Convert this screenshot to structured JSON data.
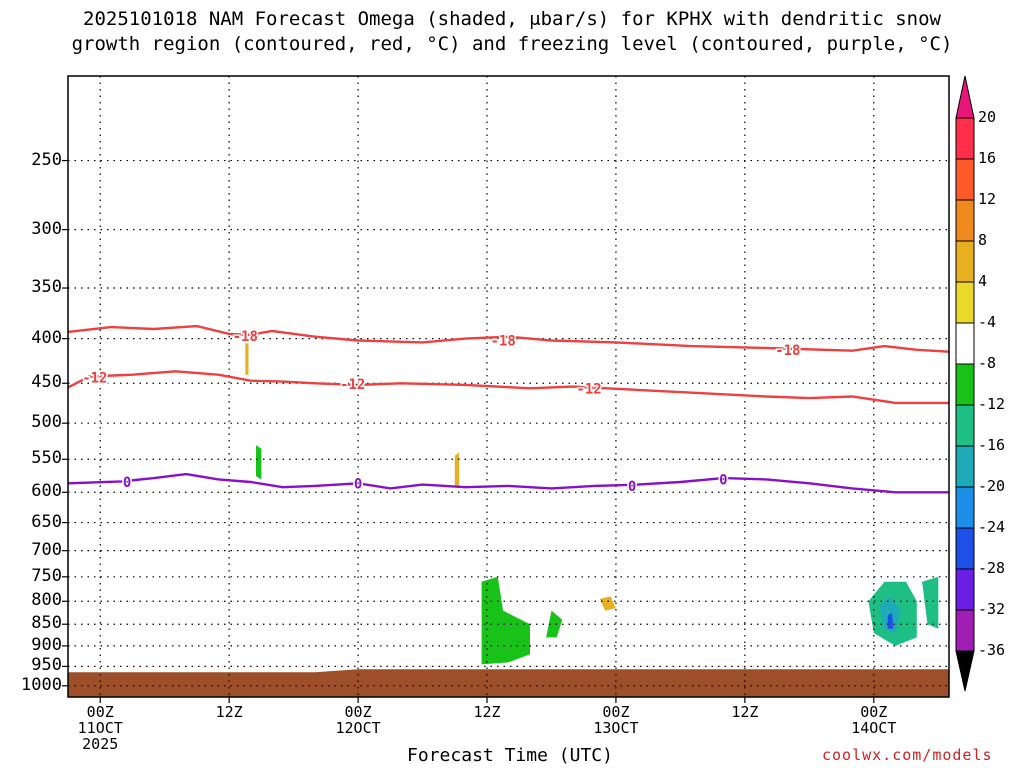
{
  "title_line1": "2025101018 NAM Forecast Omega (shaded, μbar/s) for KPHX with dendritic snow",
  "title_line2": "growth region (contoured, red, °C) and freezing level (contoured, purple, °C)",
  "credit": "coolwx.com/models",
  "chart_data": {
    "type": "heatmap",
    "xlabel": "Forecast Time (UTC)",
    "ylabel": "",
    "x_ticks": [
      {
        "hours": 0,
        "lines": [
          "00Z",
          "11OCT",
          "2025"
        ]
      },
      {
        "hours": 12,
        "lines": [
          "12Z"
        ]
      },
      {
        "hours": 24,
        "lines": [
          "00Z",
          "12OCT"
        ]
      },
      {
        "hours": 36,
        "lines": [
          "12Z"
        ]
      },
      {
        "hours": 48,
        "lines": [
          "00Z",
          "13OCT"
        ]
      },
      {
        "hours": 60,
        "lines": [
          "12Z"
        ]
      },
      {
        "hours": 72,
        "lines": [
          "00Z",
          "14OCT"
        ]
      }
    ],
    "xlim_hours": [
      -3,
      79
    ],
    "y_ticks": [
      250,
      300,
      350,
      400,
      450,
      500,
      550,
      600,
      650,
      700,
      750,
      800,
      850,
      900,
      950,
      1000
    ],
    "ylim_hpa": [
      200,
      1030
    ],
    "y_scale": "log-pressure",
    "grid": true,
    "colorbar": {
      "ticks": [
        20,
        16,
        12,
        8,
        4,
        -4,
        -8,
        -12,
        -16,
        -20,
        -24,
        -28,
        -32,
        -36
      ],
      "colors": [
        "#ff2f4b",
        "#ff5a2a",
        "#f08a1e",
        "#e8b020",
        "#ead82a",
        "#ffffff",
        "#19c219",
        "#1ebf85",
        "#1eaab7",
        "#1e8fe8",
        "#1e4fe6",
        "#6a1ee6",
        "#a01eb4",
        "#a8a8a8"
      ],
      "top_arrow_color": "#e8167a",
      "bottom_arrow_color": "#000000"
    },
    "contours": [
      {
        "kind": "dgz",
        "label": "-18",
        "color": "#ee4040",
        "points": [
          [
            -3,
            393
          ],
          [
            1,
            388
          ],
          [
            5,
            390
          ],
          [
            9,
            387
          ],
          [
            12,
            395
          ],
          [
            14,
            396
          ],
          [
            16,
            392
          ],
          [
            20,
            398
          ],
          [
            24,
            402
          ],
          [
            30,
            404
          ],
          [
            34,
            400
          ],
          [
            38,
            398
          ],
          [
            42,
            402
          ],
          [
            48,
            404
          ],
          [
            55,
            408
          ],
          [
            62,
            410
          ],
          [
            70,
            413
          ],
          [
            73,
            408
          ],
          [
            76,
            412
          ],
          [
            79,
            414
          ]
        ],
        "label_hours": [
          [
            13.5,
            397
          ],
          [
            37.5,
            402
          ],
          [
            64,
            412
          ]
        ]
      },
      {
        "kind": "dgz",
        "label": "-12",
        "color": "#ee4040",
        "points": [
          [
            -3,
            455
          ],
          [
            -1,
            442
          ],
          [
            3,
            440
          ],
          [
            7,
            436
          ],
          [
            11,
            440
          ],
          [
            14,
            447
          ],
          [
            17,
            448
          ],
          [
            20,
            450
          ],
          [
            24,
            452
          ],
          [
            28,
            450
          ],
          [
            34,
            452
          ],
          [
            40,
            456
          ],
          [
            44,
            454
          ],
          [
            50,
            458
          ],
          [
            56,
            462
          ],
          [
            62,
            466
          ],
          [
            66,
            468
          ],
          [
            70,
            466
          ],
          [
            74,
            474
          ],
          [
            79,
            474
          ]
        ],
        "label_hours": [
          [
            -0.5,
            443
          ],
          [
            23.5,
            451
          ],
          [
            45.5,
            456
          ]
        ]
      },
      {
        "kind": "freezing",
        "label": "0",
        "color": "#8a10c8",
        "points": [
          [
            -3,
            586
          ],
          [
            2,
            583
          ],
          [
            5,
            578
          ],
          [
            8,
            572
          ],
          [
            11,
            580
          ],
          [
            14,
            584
          ],
          [
            17,
            592
          ],
          [
            20,
            590
          ],
          [
            24,
            586
          ],
          [
            27,
            594
          ],
          [
            30,
            588
          ],
          [
            34,
            592
          ],
          [
            38,
            590
          ],
          [
            42,
            594
          ],
          [
            46,
            590
          ],
          [
            50,
            588
          ],
          [
            54,
            584
          ],
          [
            58,
            578
          ],
          [
            62,
            580
          ],
          [
            66,
            586
          ],
          [
            70,
            594
          ],
          [
            74,
            600
          ],
          [
            79,
            600
          ]
        ],
        "label_hours": [
          [
            2.5,
            584
          ],
          [
            24,
            586
          ],
          [
            49.5,
            590
          ],
          [
            58,
            580
          ]
        ]
      }
    ],
    "omega_regions": [
      {
        "value": -6,
        "points": [
          [
            -3,
            580
          ],
          [
            -2.5,
            750
          ],
          [
            -3,
            760
          ]
        ]
      },
      {
        "value": -6,
        "points": [
          [
            0,
            660
          ],
          [
            1,
            640
          ],
          [
            2,
            680
          ],
          [
            2.5,
            770
          ],
          [
            3.5,
            840
          ],
          [
            4.5,
            900
          ],
          [
            4,
            910
          ],
          [
            2,
            905
          ],
          [
            1.5,
            860
          ],
          [
            1,
            760
          ],
          [
            0.5,
            700
          ]
        ]
      },
      {
        "value": -6,
        "points": [
          [
            5.5,
            905
          ],
          [
            7,
            903
          ],
          [
            7,
            920
          ],
          [
            5.5,
            918
          ]
        ]
      },
      {
        "value": -6,
        "points": [
          [
            7,
            640
          ],
          [
            8,
            620
          ],
          [
            8.5,
            660
          ],
          [
            8,
            690
          ],
          [
            7,
            660
          ]
        ]
      },
      {
        "value": -6,
        "points": [
          [
            9.5,
            430
          ],
          [
            10.5,
            425
          ],
          [
            10.5,
            560
          ],
          [
            10,
            680
          ],
          [
            9.5,
            690
          ]
        ]
      },
      {
        "value": -6,
        "points": [
          [
            11,
            380
          ],
          [
            12,
            400
          ],
          [
            13,
            380
          ],
          [
            14,
            400
          ],
          [
            15,
            380
          ],
          [
            16.5,
            380
          ],
          [
            17,
            430
          ],
          [
            18,
            560
          ],
          [
            19,
            650
          ],
          [
            17,
            650
          ],
          [
            16,
            650
          ],
          [
            14,
            700
          ],
          [
            12,
            690
          ],
          [
            11,
            680
          ]
        ]
      },
      {
        "value": -10,
        "points": [
          [
            14.5,
            530
          ],
          [
            15,
            535
          ],
          [
            15,
            580
          ],
          [
            14.5,
            575
          ]
        ]
      },
      {
        "value": -6,
        "points": [
          [
            12,
            770
          ],
          [
            13,
            760
          ],
          [
            14,
            820
          ],
          [
            14.5,
            860
          ],
          [
            12.5,
            860
          ],
          [
            12,
            820
          ]
        ]
      },
      {
        "value": -6,
        "points": [
          [
            29,
            690
          ],
          [
            31,
            650
          ],
          [
            32,
            700
          ],
          [
            33,
            740
          ],
          [
            32.5,
            800
          ],
          [
            31,
            820
          ],
          [
            29.5,
            800
          ]
        ]
      },
      {
        "value": -6,
        "points": [
          [
            35,
            610
          ],
          [
            37,
            590
          ],
          [
            40,
            600
          ],
          [
            41,
            620
          ],
          [
            41,
            760
          ],
          [
            42,
            730
          ],
          [
            43,
            660
          ],
          [
            44,
            650
          ],
          [
            45,
            720
          ],
          [
            44,
            800
          ],
          [
            45,
            860
          ],
          [
            44.5,
            920
          ],
          [
            42,
            940
          ],
          [
            40,
            910
          ],
          [
            38,
            950
          ],
          [
            36,
            955
          ],
          [
            34.5,
            950
          ],
          [
            34.5,
            800
          ]
        ]
      },
      {
        "value": -10,
        "points": [
          [
            35.5,
            760
          ],
          [
            37,
            750
          ],
          [
            37.5,
            820
          ],
          [
            40,
            850
          ],
          [
            40,
            920
          ],
          [
            38,
            940
          ],
          [
            35.5,
            945
          ]
        ]
      },
      {
        "value": -10,
        "points": [
          [
            42,
            820
          ],
          [
            43,
            840
          ],
          [
            42.5,
            880
          ],
          [
            41.5,
            880
          ]
        ]
      },
      {
        "value": -6,
        "points": [
          [
            44,
            500
          ],
          [
            45,
            480
          ],
          [
            45,
            580
          ],
          [
            44.5,
            660
          ],
          [
            44,
            650
          ]
        ]
      },
      {
        "value": -6,
        "points": [
          [
            46,
            640
          ],
          [
            47,
            600
          ],
          [
            48.5,
            620
          ],
          [
            49,
            700
          ],
          [
            48,
            780
          ],
          [
            47,
            760
          ],
          [
            46.5,
            700
          ]
        ]
      },
      {
        "value": -6,
        "points": [
          [
            52.5,
            600
          ],
          [
            53.5,
            595
          ],
          [
            53.5,
            650
          ],
          [
            52.5,
            650
          ]
        ]
      },
      {
        "value": -6,
        "points": [
          [
            70,
            800
          ],
          [
            72,
            720
          ],
          [
            74,
            660
          ],
          [
            76,
            680
          ],
          [
            79,
            670
          ],
          [
            79,
            930
          ],
          [
            76,
            940
          ],
          [
            73,
            920
          ],
          [
            71,
            880
          ],
          [
            70.5,
            840
          ]
        ]
      },
      {
        "value": -12,
        "points": [
          [
            71.5,
            800
          ],
          [
            73,
            760
          ],
          [
            75,
            760
          ],
          [
            76,
            800
          ],
          [
            76,
            880
          ],
          [
            74,
            900
          ],
          [
            72,
            870
          ]
        ]
      },
      {
        "value": -16,
        "points": [
          [
            72.5,
            810
          ],
          [
            73.5,
            790
          ],
          [
            74.5,
            820
          ],
          [
            74,
            870
          ],
          [
            73,
            860
          ]
        ]
      },
      {
        "value": -24,
        "points": [
          [
            73.3,
            830
          ],
          [
            73.7,
            825
          ],
          [
            73.8,
            860
          ],
          [
            73.3,
            860
          ]
        ]
      },
      {
        "value": -12,
        "points": [
          [
            76.5,
            760
          ],
          [
            78,
            750
          ],
          [
            78,
            860
          ],
          [
            77,
            850
          ]
        ]
      },
      {
        "value": 6,
        "points": [
          [
            13.5,
            405
          ],
          [
            13.8,
            405
          ],
          [
            13.8,
            440
          ],
          [
            13.5,
            440
          ]
        ]
      },
      {
        "value": 6,
        "points": [
          [
            33,
            545
          ],
          [
            33.4,
            540
          ],
          [
            33.4,
            590
          ],
          [
            33,
            590
          ]
        ]
      },
      {
        "value": 6,
        "points": [
          [
            46.5,
            795
          ],
          [
            47.5,
            790
          ],
          [
            48,
            815
          ],
          [
            47,
            820
          ]
        ]
      }
    ],
    "terrain_top_hpa": 965,
    "terrain_color": "#9c4f28"
  }
}
